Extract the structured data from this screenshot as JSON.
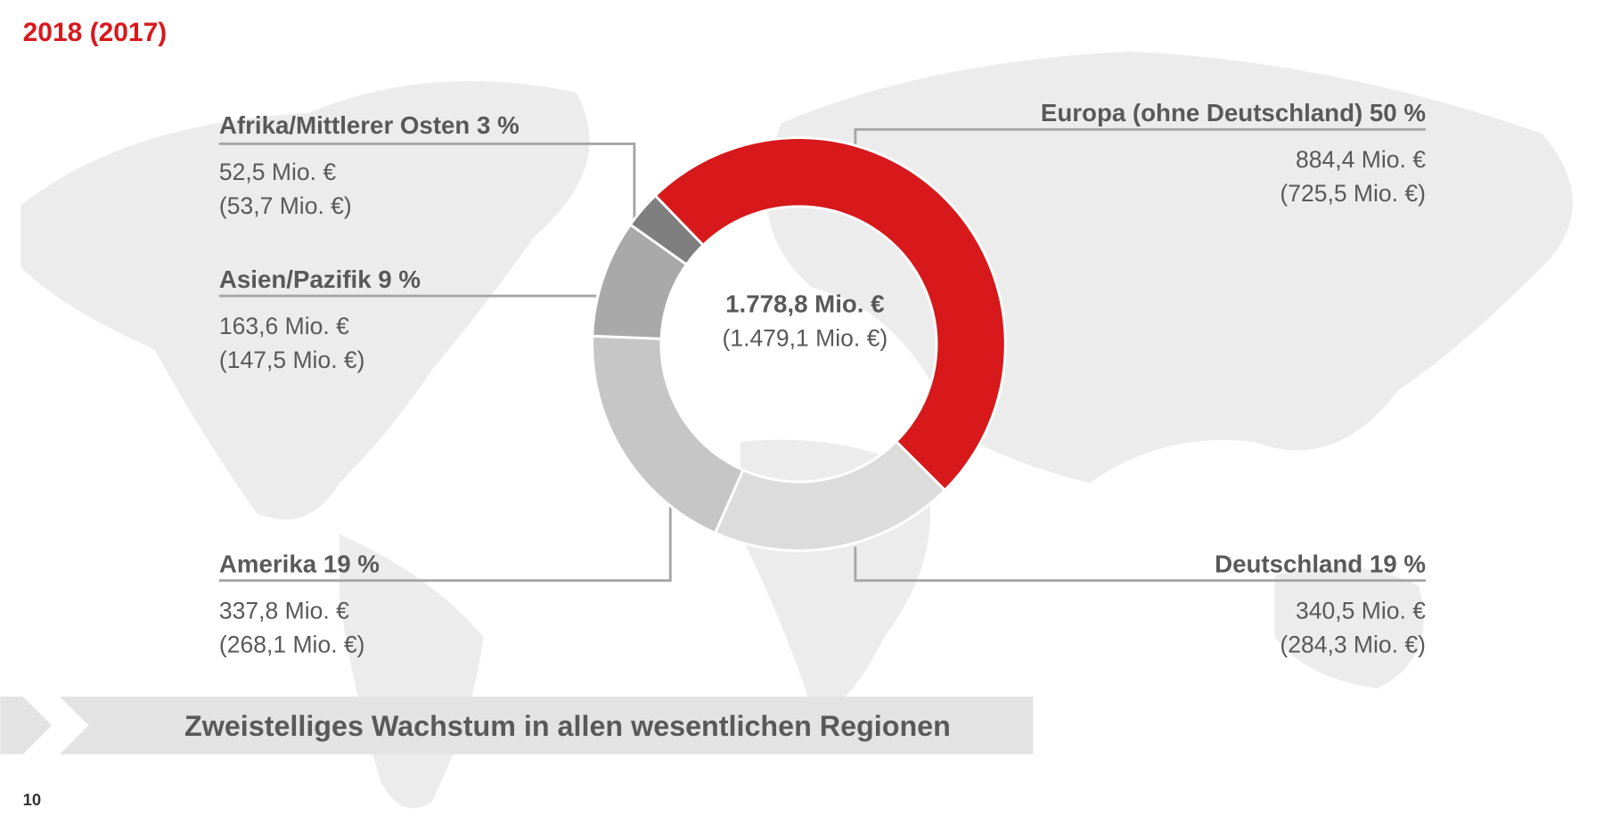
{
  "chart_data": {
    "type": "donut",
    "title": "2018 (2017)",
    "categories": [
      "Europa (ohne Deutschland) 50 %",
      "Deutschland 19 %",
      "Amerika 19 %",
      "Asien/Pazifik 9 %",
      "Afrika/Mittlerer Osten 3 %"
    ],
    "values": [
      884.4,
      340.5,
      337.8,
      163.6,
      52.5
    ],
    "value_labels": [
      "884,4 Mio. €",
      "340,5 Mio. €",
      "337,8 Mio. €",
      "163,6 Mio. €",
      "52,5 Mio. €"
    ],
    "prior_values": [
      725.5,
      284.3,
      268.1,
      147.5,
      53.7
    ],
    "prior_value_labels": [
      "(725,5 Mio. €)",
      "(284,3 Mio. €)",
      "(268,1 Mio. €)",
      "(147,5 Mio. €)",
      "(53,7 Mio. €)"
    ],
    "colors": [
      "#d7191c",
      "#dcdcdc",
      "#c6c6c6",
      "#a9a9a9",
      "#7f7f7f"
    ],
    "total": {
      "value": 1778.8,
      "label": "1.778,8 Mio. €"
    },
    "prior_total": {
      "value": 1479.1,
      "label": "(1.479,1 Mio. €)"
    },
    "banner": "Zweistelliges Wachstum in allen wesentlichen Regionen",
    "page_number": "10"
  }
}
